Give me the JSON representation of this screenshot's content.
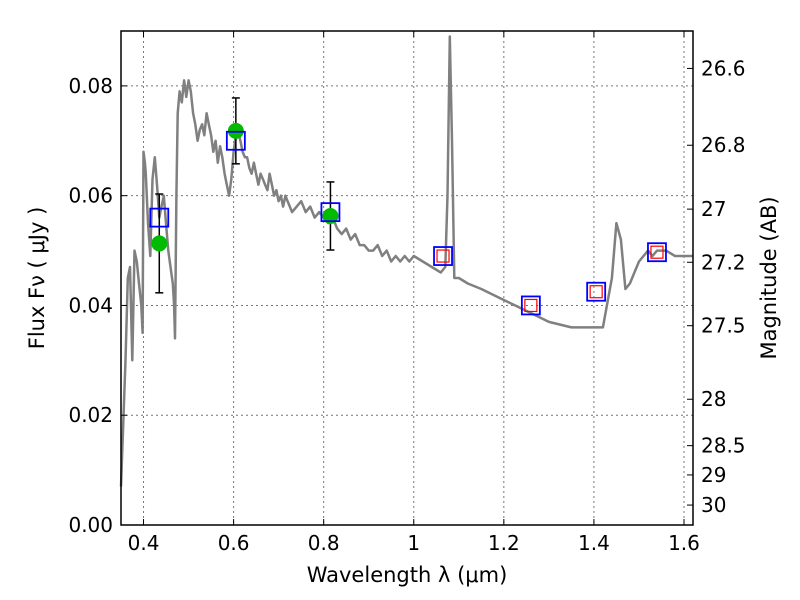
{
  "chart_data": {
    "type": "line",
    "xlabel": "Wavelength  λ (μm)",
    "ylabel": "Flux  Fν  ( μJy )",
    "ylabel_right": "Magnitude (AB)",
    "xlim": [
      0.35,
      1.62
    ],
    "ylim": [
      0.0,
      0.09
    ],
    "x_ticks": [
      0.4,
      0.6,
      0.8,
      1.0,
      1.2,
      1.4,
      1.6
    ],
    "x_tick_labels": [
      "0.4",
      "0.6",
      "0.8",
      "1",
      "1.2",
      "1.4",
      "1.6"
    ],
    "y_ticks": [
      0.0,
      0.02,
      0.04,
      0.06,
      0.08
    ],
    "y_tick_labels": [
      "0.00",
      "0.02",
      "0.04",
      "0.06",
      "0.08"
    ],
    "mag_ticks": [
      26.6,
      26.8,
      27.0,
      27.2,
      27.5,
      28.0,
      28.5,
      29.0,
      30.0
    ],
    "mag_tick_labels": [
      "26.6",
      "26.8",
      "27",
      "27.2",
      "27.5",
      "28",
      "28.5",
      "29",
      "30"
    ],
    "grid": true,
    "series": [
      {
        "kind": "model-sed",
        "color": "#808080",
        "x": [
          0.35,
          0.36,
          0.365,
          0.37,
          0.375,
          0.38,
          0.385,
          0.39,
          0.395,
          0.398,
          0.4,
          0.403,
          0.405,
          0.41,
          0.415,
          0.42,
          0.425,
          0.43,
          0.435,
          0.44,
          0.445,
          0.45,
          0.455,
          0.46,
          0.465,
          0.468,
          0.47,
          0.473,
          0.476,
          0.48,
          0.485,
          0.49,
          0.495,
          0.5,
          0.505,
          0.51,
          0.515,
          0.52,
          0.525,
          0.53,
          0.535,
          0.54,
          0.545,
          0.55,
          0.555,
          0.56,
          0.565,
          0.57,
          0.575,
          0.58,
          0.585,
          0.59,
          0.595,
          0.6,
          0.605,
          0.61,
          0.615,
          0.62,
          0.625,
          0.63,
          0.635,
          0.64,
          0.645,
          0.65,
          0.655,
          0.66,
          0.665,
          0.67,
          0.675,
          0.68,
          0.685,
          0.69,
          0.695,
          0.7,
          0.705,
          0.71,
          0.715,
          0.72,
          0.73,
          0.74,
          0.75,
          0.76,
          0.77,
          0.78,
          0.79,
          0.8,
          0.81,
          0.82,
          0.83,
          0.84,
          0.85,
          0.86,
          0.87,
          0.88,
          0.89,
          0.9,
          0.91,
          0.92,
          0.93,
          0.94,
          0.95,
          0.96,
          0.97,
          0.98,
          0.99,
          1.0,
          1.02,
          1.04,
          1.06,
          1.07,
          1.075,
          1.08,
          1.085,
          1.09,
          1.1,
          1.12,
          1.15,
          1.2,
          1.25,
          1.3,
          1.35,
          1.4,
          1.42,
          1.44,
          1.45,
          1.46,
          1.47,
          1.48,
          1.49,
          1.5,
          1.52,
          1.53,
          1.54,
          1.56,
          1.58,
          1.6,
          1.62
        ],
        "y": [
          0.007,
          0.03,
          0.045,
          0.047,
          0.03,
          0.05,
          0.048,
          0.044,
          0.04,
          0.035,
          0.068,
          0.066,
          0.064,
          0.055,
          0.049,
          0.063,
          0.067,
          0.062,
          0.056,
          0.058,
          0.06,
          0.055,
          0.05,
          0.047,
          0.044,
          0.04,
          0.034,
          0.06,
          0.075,
          0.079,
          0.077,
          0.081,
          0.078,
          0.081,
          0.079,
          0.075,
          0.073,
          0.07,
          0.072,
          0.073,
          0.071,
          0.075,
          0.073,
          0.071,
          0.068,
          0.07,
          0.066,
          0.069,
          0.067,
          0.064,
          0.062,
          0.06,
          0.063,
          0.068,
          0.071,
          0.072,
          0.07,
          0.068,
          0.067,
          0.067,
          0.065,
          0.064,
          0.066,
          0.064,
          0.062,
          0.064,
          0.063,
          0.062,
          0.061,
          0.064,
          0.062,
          0.06,
          0.061,
          0.059,
          0.06,
          0.058,
          0.06,
          0.059,
          0.057,
          0.058,
          0.059,
          0.057,
          0.058,
          0.056,
          0.057,
          0.056,
          0.055,
          0.056,
          0.054,
          0.053,
          0.054,
          0.052,
          0.053,
          0.051,
          0.051,
          0.05,
          0.05,
          0.051,
          0.049,
          0.05,
          0.048,
          0.049,
          0.048,
          0.049,
          0.048,
          0.049,
          0.048,
          0.047,
          0.046,
          0.047,
          0.06,
          0.089,
          0.07,
          0.045,
          0.045,
          0.044,
          0.043,
          0.041,
          0.039,
          0.037,
          0.036,
          0.036,
          0.036,
          0.045,
          0.055,
          0.052,
          0.043,
          0.044,
          0.046,
          0.048,
          0.05,
          0.049,
          0.05,
          0.05,
          0.049,
          0.049,
          0.049
        ]
      },
      {
        "kind": "observed",
        "marker": "circle",
        "color": "#00bb00",
        "x": [
          0.435,
          0.605,
          0.815
        ],
        "y": [
          0.0513,
          0.0718,
          0.0563
        ],
        "yerr": [
          0.009,
          0.006,
          0.0062
        ]
      },
      {
        "kind": "model-band",
        "marker": "square",
        "color": "#0000ff",
        "x": [
          0.435,
          0.605,
          0.815,
          1.065,
          1.26,
          1.405,
          1.54
        ],
        "y": [
          0.056,
          0.07,
          0.057,
          0.049,
          0.04,
          0.0425,
          0.0497
        ]
      },
      {
        "kind": "upper-limit-band",
        "marker": "square",
        "color": "#ff0000",
        "x": [
          1.065,
          1.26,
          1.405,
          1.54
        ],
        "y": [
          0.049,
          0.04,
          0.0425,
          0.0497
        ]
      }
    ]
  }
}
